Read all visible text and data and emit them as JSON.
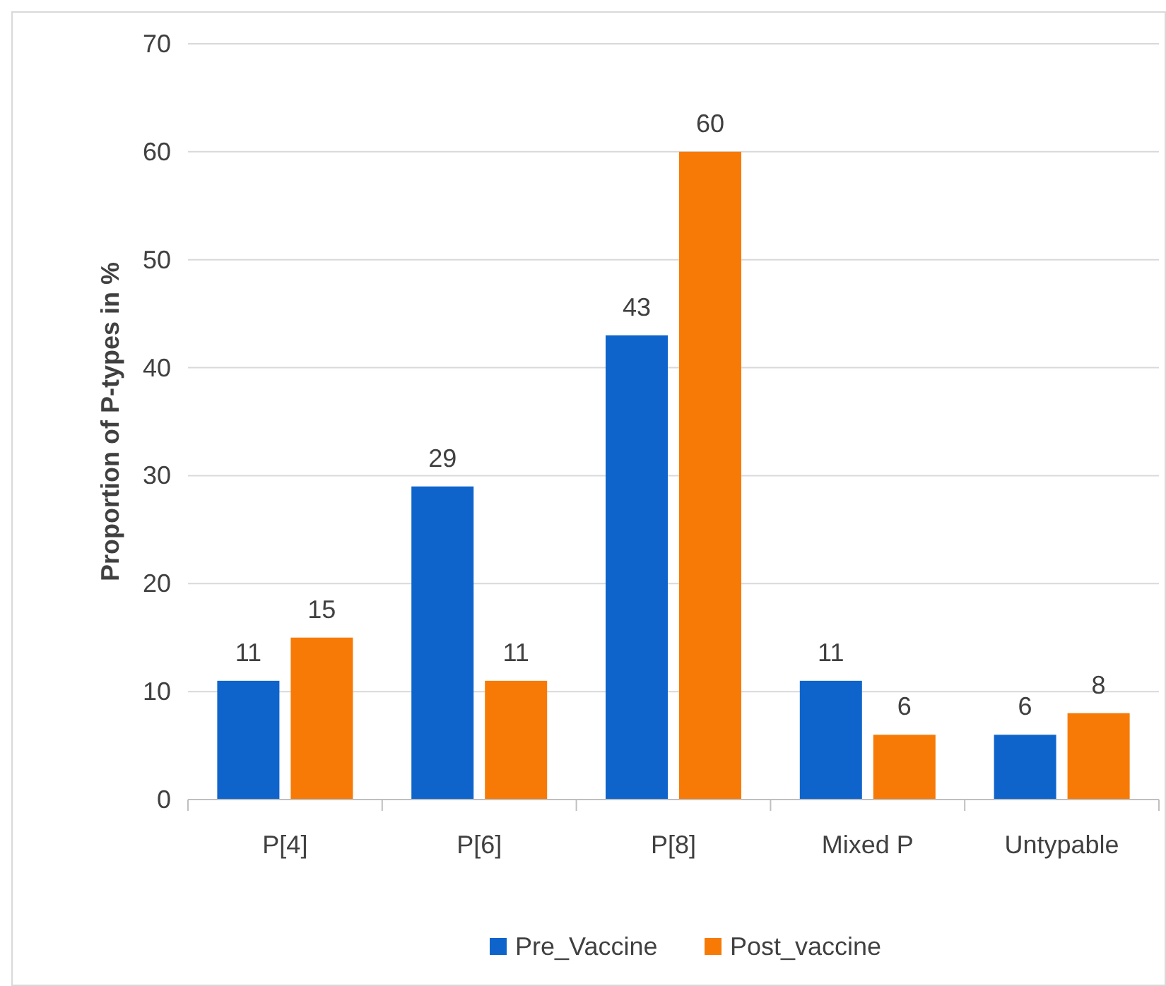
{
  "chart_data": {
    "type": "bar",
    "ylabel": "Proportion of P-types in %",
    "categories": [
      "P[4]",
      "P[6]",
      "P[8]",
      "Mixed P",
      "Untypable"
    ],
    "series": [
      {
        "name": "Pre_Vaccine",
        "color": "#0f64cc",
        "values": [
          11,
          29,
          43,
          11,
          6
        ]
      },
      {
        "name": "Post_vaccine",
        "color": "#f77a06",
        "values": [
          15,
          11,
          60,
          6,
          8
        ]
      }
    ],
    "ylim": [
      0,
      70
    ],
    "yticks": [
      0,
      10,
      20,
      30,
      40,
      50,
      60,
      70
    ],
    "grid": "y",
    "legend": "bottom",
    "data_labels": true
  }
}
